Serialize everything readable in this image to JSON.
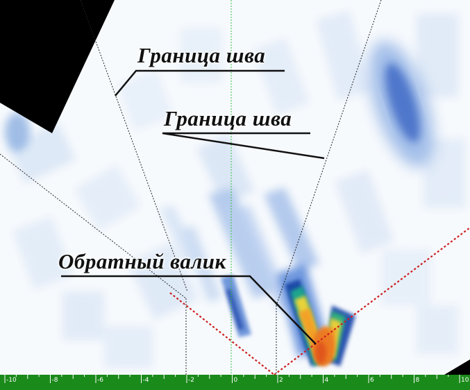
{
  "annotations": {
    "seam_boundary_left": "Граница шва",
    "seam_boundary_right": "Граница шва",
    "back_bead": "Обратный валик"
  },
  "ruler": {
    "ticks": [
      "-10",
      "-8",
      "-6",
      "-4",
      "-2",
      "0",
      "2",
      "4",
      "6",
      "8",
      "10"
    ],
    "background_color": "#1a8a1a",
    "tick_color": "#ffffff"
  },
  "colors": {
    "scan_background": "#f6f9fd",
    "amplitude_low": "#c9dbf2",
    "amplitude_mid": "#3e6fc7",
    "amplitude_high": "#f4a020",
    "reference_line": "#cc1e1e",
    "center_line": "#2fbf3a",
    "dead_zone": "#000000"
  }
}
